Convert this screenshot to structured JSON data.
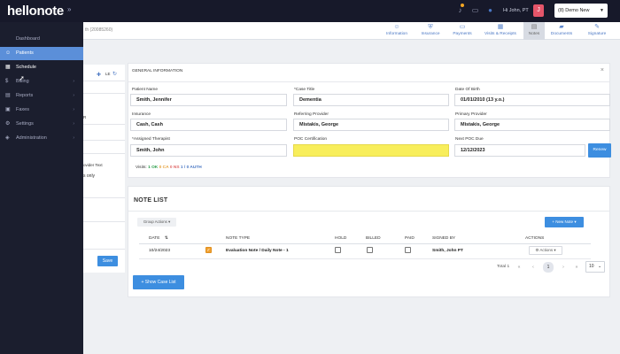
{
  "header": {
    "logo": "hellonote",
    "collapse_icon": "chevron-right-icon",
    "greeting": "Hi John, PT",
    "avatar_letter": "J",
    "clinic": "(8) Demo New",
    "accent": "#17192a"
  },
  "sidebar": {
    "items": [
      {
        "label": "Dashboard",
        "icon": "home-icon"
      },
      {
        "label": "Patients",
        "icon": "user-icon"
      },
      {
        "label": "Schedule",
        "icon": "calendar-icon"
      },
      {
        "label": "Billing",
        "icon": "dollar-icon"
      },
      {
        "label": "Reports",
        "icon": "chart-icon"
      },
      {
        "label": "Faxes",
        "icon": "fax-icon"
      },
      {
        "label": "Settings",
        "icon": "gear-icon"
      },
      {
        "label": "Administration",
        "icon": "shield-icon"
      }
    ],
    "active_color": "#5b8fd9"
  },
  "page": {
    "patient_crumb": "th (20085260)",
    "tabs": [
      "Information",
      "Insurance",
      "Payments",
      "Visits & Receipts",
      "Notes",
      "Documents",
      "Signature"
    ],
    "active_tab": "Notes"
  },
  "left_panel": {
    "icon_text": "LE",
    "snippet_1": "R",
    "snippet_2": "ovider Text",
    "snippet_3": "s only",
    "save_label": "Save"
  },
  "general_info": {
    "title": "GENERAL INFORMATION",
    "fields": {
      "patient_name": {
        "label": "Patient Name",
        "value": "Smith, Jennifer"
      },
      "case_title": {
        "label": "*Case Title",
        "value": "Dementia"
      },
      "dob": {
        "label": "Date Of Birth",
        "value": "01/01/2010 (13 y.o.)"
      },
      "insurance": {
        "label": "Insurance",
        "value": "Cash, Cash"
      },
      "referring": {
        "label": "Referring Provider",
        "value": "Mistakis, George"
      },
      "primary": {
        "label": "Primary Provider",
        "value": "Mistakis, George"
      },
      "therapist": {
        "label": "*Assigned Therapist",
        "value": "Smith, John"
      },
      "poc": {
        "label": "POC Certification",
        "value": ""
      },
      "next_poc": {
        "label": "Next POC Due",
        "value": "12/12/2023"
      }
    },
    "renew_label": "Renew",
    "visits": {
      "prefix": "Visits:",
      "ok": "1 OK",
      "ca": "0 CA",
      "ns": "0 NS",
      "auth": "1 / 0 AUTH"
    }
  },
  "note_list": {
    "title": "NOTE LIST",
    "group_actions": "Group Actions",
    "new_note": "+ New Note",
    "columns": [
      "DATE",
      "NOTE TYPE",
      "HOLD",
      "BILLED",
      "PAID",
      "SIGNED BY",
      "ACTIONS"
    ],
    "rows": [
      {
        "date": "10/24/2023",
        "type": "Evaluation Note / Daily Note - 1",
        "signed_by": "Smith, John PT",
        "actions": "Actions"
      }
    ],
    "total": "Total 1",
    "current_page": "1",
    "page_size": "10",
    "show_case_list": "+ Show Case List"
  }
}
